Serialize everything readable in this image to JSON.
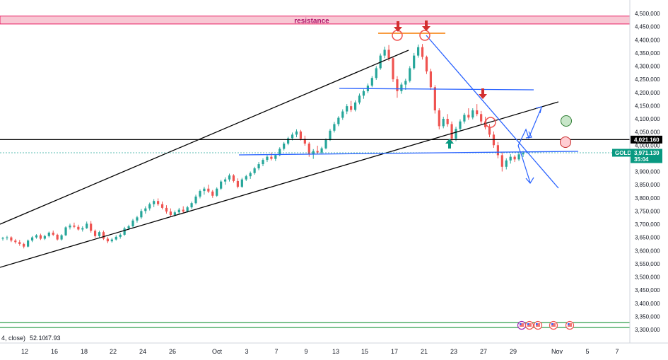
{
  "chart_data": {
    "type": "candlestick",
    "symbol": "GOLD",
    "colors": {
      "up": "#26a69a",
      "down": "#ef5350",
      "trend_black": "#000000",
      "trend_blue": "#2962ff",
      "resistance_fill": "#f8c8d4",
      "resistance_border": "#e91e63",
      "support_green": "#2e9e4a"
    },
    "y_axis": {
      "min": 3300,
      "max": 4500,
      "ticks": [
        "4,500,000",
        "4,450,000",
        "4,400,000",
        "4,350,000",
        "4,300,000",
        "4,250,000",
        "4,200,000",
        "4,150,000",
        "4,100,000",
        "4,050,000",
        "4,000,000",
        "3,950,000",
        "3,900,000",
        "3,850,000",
        "3,800,000",
        "3,750,000",
        "3,700,000",
        "3,650,000",
        "3,600,000",
        "3,550,000",
        "3,500,000",
        "3,450,000",
        "3,400,000",
        "3,350,000",
        "3,300,000"
      ]
    },
    "x_axis": {
      "labels": [
        "12",
        "16",
        "18",
        "22",
        "24",
        "26",
        "Oct",
        "3",
        "7",
        "9",
        "13",
        "15",
        "17",
        "21",
        "23",
        "27",
        "29",
        "Nov",
        "5",
        "7"
      ]
    },
    "resistance": {
      "label": "resistance",
      "low": 4460,
      "high": 4490
    },
    "horizontal_level": {
      "value": 4021.16,
      "label": "4,021.160"
    },
    "current_price": {
      "value": 3971.13,
      "label": "3,971.130",
      "symbol": "GOLD",
      "countdown": "35:04"
    },
    "indicator": {
      "label": "4, close)",
      "values": [
        "52.10",
        "47.93"
      ]
    },
    "ohlc": [
      [
        3645,
        3652,
        3638,
        3648
      ],
      [
        3648,
        3656,
        3640,
        3650
      ],
      [
        3650,
        3654,
        3632,
        3638
      ],
      [
        3638,
        3644,
        3626,
        3632
      ],
      [
        3632,
        3640,
        3618,
        3625
      ],
      [
        3625,
        3630,
        3608,
        3615
      ],
      [
        3615,
        3642,
        3612,
        3638
      ],
      [
        3638,
        3655,
        3632,
        3650
      ],
      [
        3650,
        3662,
        3645,
        3658
      ],
      [
        3658,
        3664,
        3640,
        3645
      ],
      [
        3645,
        3660,
        3640,
        3655
      ],
      [
        3655,
        3672,
        3650,
        3668
      ],
      [
        3668,
        3676,
        3655,
        3660
      ],
      [
        3660,
        3664,
        3638,
        3642
      ],
      [
        3642,
        3662,
        3638,
        3658
      ],
      [
        3658,
        3692,
        3655,
        3688
      ],
      [
        3688,
        3702,
        3680,
        3695
      ],
      [
        3695,
        3706,
        3685,
        3690
      ],
      [
        3690,
        3698,
        3676,
        3680
      ],
      [
        3680,
        3692,
        3672,
        3685
      ],
      [
        3685,
        3710,
        3682,
        3702
      ],
      [
        3702,
        3712,
        3668,
        3675
      ],
      [
        3675,
        3680,
        3648,
        3655
      ],
      [
        3655,
        3675,
        3650,
        3670
      ],
      [
        3670,
        3676,
        3640,
        3645
      ],
      [
        3645,
        3652,
        3628,
        3635
      ],
      [
        3635,
        3648,
        3630,
        3642
      ],
      [
        3642,
        3658,
        3638,
        3652
      ],
      [
        3652,
        3666,
        3645,
        3660
      ],
      [
        3660,
        3690,
        3656,
        3684
      ],
      [
        3684,
        3698,
        3678,
        3692
      ],
      [
        3692,
        3720,
        3688,
        3714
      ],
      [
        3714,
        3732,
        3706,
        3726
      ],
      [
        3726,
        3758,
        3720,
        3750
      ],
      [
        3750,
        3768,
        3740,
        3760
      ],
      [
        3760,
        3782,
        3752,
        3776
      ],
      [
        3776,
        3795,
        3765,
        3788
      ],
      [
        3788,
        3798,
        3770,
        3776
      ],
      [
        3776,
        3786,
        3756,
        3762
      ],
      [
        3762,
        3772,
        3740,
        3748
      ],
      [
        3748,
        3760,
        3728,
        3735
      ],
      [
        3735,
        3752,
        3730,
        3745
      ],
      [
        3745,
        3762,
        3738,
        3755
      ],
      [
        3755,
        3768,
        3742,
        3748
      ],
      [
        3748,
        3770,
        3744,
        3764
      ],
      [
        3764,
        3786,
        3758,
        3780
      ],
      [
        3780,
        3812,
        3775,
        3805
      ],
      [
        3805,
        3832,
        3798,
        3826
      ],
      [
        3826,
        3842,
        3812,
        3835
      ],
      [
        3835,
        3850,
        3818,
        3824
      ],
      [
        3824,
        3830,
        3800,
        3808
      ],
      [
        3808,
        3840,
        3804,
        3835
      ],
      [
        3835,
        3868,
        3830,
        3862
      ],
      [
        3862,
        3878,
        3850,
        3870
      ],
      [
        3870,
        3892,
        3862,
        3885
      ],
      [
        3885,
        3890,
        3858,
        3864
      ],
      [
        3864,
        3874,
        3836,
        3842
      ],
      [
        3842,
        3876,
        3838,
        3870
      ],
      [
        3870,
        3888,
        3864,
        3882
      ],
      [
        3882,
        3900,
        3872,
        3894
      ],
      [
        3894,
        3918,
        3888,
        3912
      ],
      [
        3912,
        3936,
        3905,
        3928
      ],
      [
        3928,
        3950,
        3920,
        3944
      ],
      [
        3944,
        3962,
        3936,
        3956
      ],
      [
        3956,
        3972,
        3942,
        3948
      ],
      [
        3948,
        3966,
        3940,
        3962
      ],
      [
        3962,
        3992,
        3958,
        3986
      ],
      [
        3986,
        4012,
        3980,
        4006
      ],
      [
        4006,
        4032,
        4000,
        4026
      ],
      [
        4026,
        4048,
        4018,
        4040
      ],
      [
        4040,
        4060,
        4030,
        4052
      ],
      [
        4052,
        4058,
        4018,
        4024
      ],
      [
        4024,
        4036,
        3998,
        4006
      ],
      [
        4006,
        4012,
        3956,
        3965
      ],
      [
        3965,
        3985,
        3948,
        3978
      ],
      [
        3978,
        3998,
        3965,
        3972
      ],
      [
        3972,
        3994,
        3966,
        3988
      ],
      [
        3988,
        4026,
        3984,
        4020
      ],
      [
        4020,
        4062,
        4016,
        4055
      ],
      [
        4055,
        4088,
        4048,
        4080
      ],
      [
        4080,
        4110,
        4072,
        4104
      ],
      [
        4104,
        4136,
        4096,
        4128
      ],
      [
        4128,
        4156,
        4118,
        4148
      ],
      [
        4148,
        4168,
        4126,
        4134
      ],
      [
        4134,
        4170,
        4128,
        4162
      ],
      [
        4162,
        4196,
        4155,
        4188
      ],
      [
        4188,
        4212,
        4176,
        4205
      ],
      [
        4205,
        4234,
        4198,
        4226
      ],
      [
        4226,
        4262,
        4220,
        4255
      ],
      [
        4255,
        4300,
        4248,
        4292
      ],
      [
        4292,
        4348,
        4286,
        4340
      ],
      [
        4340,
        4374,
        4330,
        4362
      ],
      [
        4362,
        4380,
        4320,
        4330
      ],
      [
        4330,
        4336,
        4240,
        4250
      ],
      [
        4250,
        4262,
        4180,
        4205
      ],
      [
        4205,
        4238,
        4195,
        4230
      ],
      [
        4230,
        4252,
        4210,
        4244
      ],
      [
        4244,
        4300,
        4238,
        4292
      ],
      [
        4292,
        4350,
        4286,
        4340
      ],
      [
        4340,
        4382,
        4332,
        4372
      ],
      [
        4372,
        4384,
        4325,
        4335
      ],
      [
        4335,
        4340,
        4270,
        4280
      ],
      [
        4280,
        4290,
        4210,
        4220
      ],
      [
        4220,
        4228,
        4120,
        4132
      ],
      [
        4132,
        4140,
        4060,
        4072
      ],
      [
        4072,
        4108,
        4064,
        4100
      ],
      [
        4100,
        4118,
        4070,
        4080
      ],
      [
        4080,
        4090,
        4010,
        4025
      ],
      [
        4025,
        4070,
        4015,
        4062
      ],
      [
        4062,
        4098,
        4054,
        4090
      ],
      [
        4090,
        4122,
        4082,
        4115
      ],
      [
        4115,
        4140,
        4096,
        4105
      ],
      [
        4105,
        4140,
        4098,
        4132
      ],
      [
        4132,
        4156,
        4110,
        4118
      ],
      [
        4118,
        4130,
        4080,
        4090
      ],
      [
        4090,
        4108,
        4060,
        4068
      ],
      [
        4068,
        4080,
        4030,
        4040
      ],
      [
        4040,
        4052,
        3990,
        4000
      ],
      [
        4000,
        4012,
        3950,
        3962
      ],
      [
        3962,
        3975,
        3900,
        3918
      ],
      [
        3918,
        3950,
        3908,
        3942
      ],
      [
        3942,
        3966,
        3930,
        3956
      ],
      [
        3956,
        3962,
        3936,
        3946
      ],
      [
        3946,
        3972,
        3940,
        3965
      ],
      [
        3965,
        3978,
        3955,
        3971
      ]
    ],
    "annotations": {
      "events": 5
    }
  }
}
